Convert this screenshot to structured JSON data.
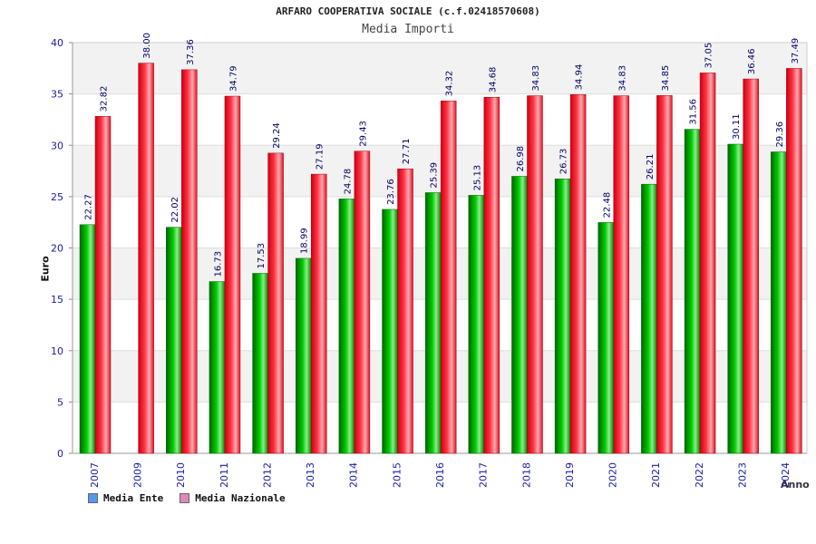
{
  "chart_data": {
    "type": "bar",
    "title": "ARFARO COOPERATIVA SOCIALE (c.f.02418570608)",
    "subtitle": "Media Importi",
    "xlabel": "Anno",
    "ylabel": "Euro",
    "ylim": [
      0,
      40
    ],
    "yticks": [
      0,
      5,
      10,
      15,
      20,
      25,
      30,
      35,
      40
    ],
    "grid": true,
    "legend_position": "bottom-left",
    "categories": [
      "2007",
      "2009",
      "2010",
      "2011",
      "2012",
      "2013",
      "2014",
      "2015",
      "2016",
      "2017",
      "2018",
      "2019",
      "2020",
      "2021",
      "2022",
      "2023",
      "2024"
    ],
    "series": [
      {
        "name": "Media Ente",
        "color": "#00aa00",
        "legend_color": "#5599ee",
        "values": [
          22.27,
          null,
          22.02,
          16.73,
          17.53,
          18.99,
          24.78,
          23.76,
          25.39,
          25.13,
          26.98,
          26.73,
          22.48,
          26.21,
          31.56,
          30.11,
          29.36
        ]
      },
      {
        "name": "Media Nazionale",
        "color": "#ee2233",
        "legend_color": "#dd88bb",
        "values": [
          32.82,
          38.0,
          37.36,
          34.79,
          29.24,
          27.19,
          29.43,
          27.71,
          34.32,
          34.68,
          34.83,
          34.94,
          34.83,
          34.85,
          37.05,
          36.46,
          37.49
        ]
      }
    ]
  }
}
